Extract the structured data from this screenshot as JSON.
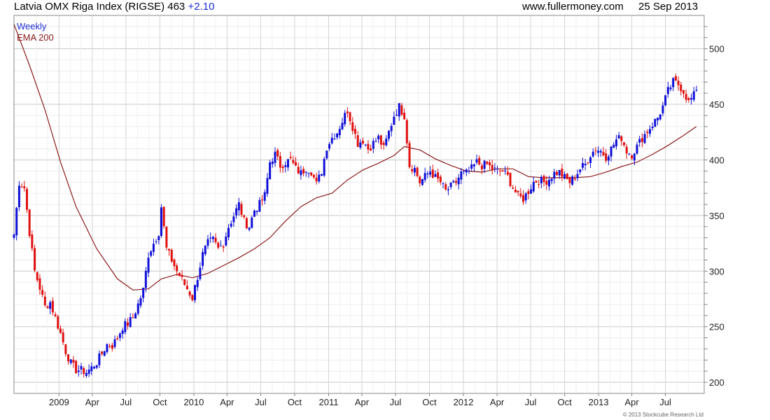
{
  "header": {
    "title": "Latvia OMX Riga Index (RIGSE) 463",
    "change": "+2.10",
    "site": "www.fullermoney.com",
    "date": "25 Sep 2013"
  },
  "legend": {
    "period": "Weekly",
    "ema": "EMA 200"
  },
  "copyright": "© 2013 Stockcube Research Ltd",
  "colors": {
    "up": "#1010d8",
    "down": "#e01010",
    "ema": "#8b1a1a",
    "grid": "#d8d8d8"
  },
  "chart_data": {
    "type": "candlestick",
    "title": "Latvia OMX Riga Index (RIGSE)",
    "ylim": [
      190,
      530
    ],
    "y_ticks": [
      200,
      250,
      300,
      350,
      400,
      450,
      500
    ],
    "x_tick_labels": [
      "2009",
      "Apr",
      "Jul",
      "Oct",
      "2010",
      "Apr",
      "Jul",
      "Oct",
      "2011",
      "Apr",
      "Jul",
      "Oct",
      "2012",
      "Apr",
      "Jul",
      "Oct",
      "2013",
      "Apr",
      "Jul"
    ],
    "x_start": "2008-09-01",
    "x_end": "2013-10-14",
    "grid": true,
    "series": [
      {
        "name": "Weekly",
        "kind": "close_anchors",
        "points": [
          [
            "2008-09-01",
            333
          ],
          [
            "2008-09-15",
            380
          ],
          [
            "2008-09-29",
            375
          ],
          [
            "2008-10-13",
            335
          ],
          [
            "2008-10-27",
            300
          ],
          [
            "2008-11-10",
            285
          ],
          [
            "2008-11-24",
            268
          ],
          [
            "2008-12-08",
            272
          ],
          [
            "2008-12-22",
            258
          ],
          [
            "2009-01-05",
            244
          ],
          [
            "2009-01-19",
            228
          ],
          [
            "2009-02-02",
            217
          ],
          [
            "2009-02-16",
            211
          ],
          [
            "2009-03-02",
            211
          ],
          [
            "2009-03-16",
            209
          ],
          [
            "2009-03-30",
            213
          ],
          [
            "2009-04-13",
            218
          ],
          [
            "2009-04-27",
            226
          ],
          [
            "2009-05-11",
            234
          ],
          [
            "2009-05-25",
            233
          ],
          [
            "2009-06-08",
            240
          ],
          [
            "2009-06-22",
            250
          ],
          [
            "2009-07-06",
            253
          ],
          [
            "2009-07-20",
            258
          ],
          [
            "2009-08-03",
            270
          ],
          [
            "2009-08-17",
            283
          ],
          [
            "2009-08-31",
            315
          ],
          [
            "2009-09-14",
            325
          ],
          [
            "2009-09-28",
            335
          ],
          [
            "2009-10-05",
            358
          ],
          [
            "2009-10-19",
            320
          ],
          [
            "2009-11-02",
            310
          ],
          [
            "2009-11-16",
            300
          ],
          [
            "2009-11-30",
            292
          ],
          [
            "2009-12-14",
            284
          ],
          [
            "2009-12-28",
            276
          ],
          [
            "2010-01-11",
            295
          ],
          [
            "2010-01-25",
            315
          ],
          [
            "2010-02-08",
            325
          ],
          [
            "2010-02-22",
            328
          ],
          [
            "2010-03-08",
            320
          ],
          [
            "2010-03-22",
            325
          ],
          [
            "2010-04-05",
            340
          ],
          [
            "2010-04-19",
            350
          ],
          [
            "2010-05-03",
            360
          ],
          [
            "2010-05-17",
            345
          ],
          [
            "2010-05-31",
            340
          ],
          [
            "2010-06-14",
            355
          ],
          [
            "2010-06-28",
            360
          ],
          [
            "2010-07-12",
            368
          ],
          [
            "2010-07-26",
            398
          ],
          [
            "2010-08-09",
            405
          ],
          [
            "2010-08-23",
            395
          ],
          [
            "2010-09-06",
            398
          ],
          [
            "2010-09-20",
            400
          ],
          [
            "2010-10-04",
            392
          ],
          [
            "2010-10-18",
            388
          ],
          [
            "2010-11-01",
            393
          ],
          [
            "2010-11-15",
            390
          ],
          [
            "2010-11-29",
            378
          ],
          [
            "2010-12-13",
            390
          ],
          [
            "2010-12-27",
            412
          ],
          [
            "2011-01-10",
            420
          ],
          [
            "2011-01-24",
            425
          ],
          [
            "2011-02-07",
            435
          ],
          [
            "2011-02-21",
            445
          ],
          [
            "2011-03-07",
            430
          ],
          [
            "2011-03-21",
            415
          ],
          [
            "2011-04-04",
            418
          ],
          [
            "2011-04-18",
            410
          ],
          [
            "2011-05-02",
            415
          ],
          [
            "2011-05-16",
            420
          ],
          [
            "2011-05-30",
            410
          ],
          [
            "2011-06-13",
            425
          ],
          [
            "2011-06-27",
            440
          ],
          [
            "2011-07-11",
            448
          ],
          [
            "2011-07-25",
            440
          ],
          [
            "2011-08-08",
            395
          ],
          [
            "2011-08-22",
            392
          ],
          [
            "2011-09-05",
            380
          ],
          [
            "2011-09-19",
            385
          ],
          [
            "2011-10-03",
            390
          ],
          [
            "2011-10-17",
            384
          ],
          [
            "2011-10-31",
            380
          ],
          [
            "2011-11-14",
            372
          ],
          [
            "2011-11-28",
            376
          ],
          [
            "2011-12-12",
            380
          ],
          [
            "2011-12-26",
            388
          ],
          [
            "2012-01-09",
            388
          ],
          [
            "2012-01-23",
            392
          ],
          [
            "2012-02-06",
            398
          ],
          [
            "2012-02-20",
            395
          ],
          [
            "2012-03-05",
            396
          ],
          [
            "2012-03-19",
            392
          ],
          [
            "2012-04-02",
            390
          ],
          [
            "2012-04-16",
            390
          ],
          [
            "2012-04-30",
            385
          ],
          [
            "2012-05-14",
            375
          ],
          [
            "2012-05-28",
            367
          ],
          [
            "2012-06-11",
            365
          ],
          [
            "2012-06-25",
            372
          ],
          [
            "2012-07-09",
            380
          ],
          [
            "2012-07-23",
            382
          ],
          [
            "2012-08-06",
            380
          ],
          [
            "2012-08-20",
            383
          ],
          [
            "2012-09-03",
            388
          ],
          [
            "2012-09-17",
            389
          ],
          [
            "2012-10-01",
            384
          ],
          [
            "2012-10-15",
            380
          ],
          [
            "2012-10-29",
            385
          ],
          [
            "2012-11-12",
            392
          ],
          [
            "2012-11-26",
            396
          ],
          [
            "2012-12-10",
            405
          ],
          [
            "2012-12-24",
            410
          ],
          [
            "2013-01-07",
            408
          ],
          [
            "2013-01-21",
            403
          ],
          [
            "2013-02-04",
            410
          ],
          [
            "2013-02-18",
            418
          ],
          [
            "2013-03-04",
            420
          ],
          [
            "2013-03-18",
            408
          ],
          [
            "2013-04-01",
            405
          ],
          [
            "2013-04-15",
            412
          ],
          [
            "2013-04-29",
            420
          ],
          [
            "2013-05-13",
            426
          ],
          [
            "2013-05-27",
            432
          ],
          [
            "2013-06-10",
            438
          ],
          [
            "2013-06-24",
            448
          ],
          [
            "2013-07-08",
            462
          ],
          [
            "2013-07-22",
            470
          ],
          [
            "2013-08-05",
            468
          ],
          [
            "2013-08-19",
            462
          ],
          [
            "2013-09-02",
            452
          ],
          [
            "2013-09-16",
            458
          ],
          [
            "2013-09-23",
            463
          ]
        ]
      },
      {
        "name": "EMA 200",
        "kind": "line",
        "points": [
          [
            "2008-09-01",
            522
          ],
          [
            "2008-10-13",
            485
          ],
          [
            "2008-11-24",
            445
          ],
          [
            "2009-01-05",
            398
          ],
          [
            "2009-02-16",
            358
          ],
          [
            "2009-04-13",
            320
          ],
          [
            "2009-06-08",
            293
          ],
          [
            "2009-07-20",
            283
          ],
          [
            "2009-08-31",
            284
          ],
          [
            "2009-10-05",
            293
          ],
          [
            "2009-11-16",
            297
          ],
          [
            "2009-12-28",
            294
          ],
          [
            "2010-02-08",
            298
          ],
          [
            "2010-03-22",
            305
          ],
          [
            "2010-05-03",
            312
          ],
          [
            "2010-06-14",
            320
          ],
          [
            "2010-07-26",
            330
          ],
          [
            "2010-09-06",
            345
          ],
          [
            "2010-10-18",
            358
          ],
          [
            "2010-11-29",
            366
          ],
          [
            "2011-01-10",
            370
          ],
          [
            "2011-02-21",
            382
          ],
          [
            "2011-04-04",
            391
          ],
          [
            "2011-05-16",
            397
          ],
          [
            "2011-06-27",
            404
          ],
          [
            "2011-07-25",
            412
          ],
          [
            "2011-09-05",
            409
          ],
          [
            "2011-10-17",
            401
          ],
          [
            "2011-11-28",
            395
          ],
          [
            "2012-01-09",
            390
          ],
          [
            "2012-02-20",
            389
          ],
          [
            "2012-04-02",
            392
          ],
          [
            "2012-05-14",
            392
          ],
          [
            "2012-06-25",
            385
          ],
          [
            "2012-08-06",
            384
          ],
          [
            "2012-09-17",
            384
          ],
          [
            "2012-10-29",
            384
          ],
          [
            "2012-12-10",
            385
          ],
          [
            "2013-01-21",
            389
          ],
          [
            "2013-03-04",
            394
          ],
          [
            "2013-04-15",
            398
          ],
          [
            "2013-05-27",
            405
          ],
          [
            "2013-07-08",
            413
          ],
          [
            "2013-08-19",
            422
          ],
          [
            "2013-09-23",
            430
          ]
        ]
      }
    ]
  }
}
